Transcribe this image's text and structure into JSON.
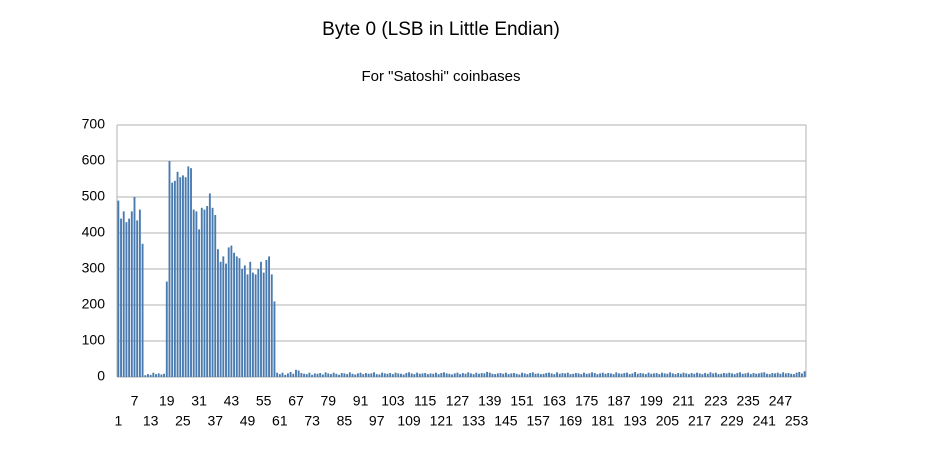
{
  "chart_data": {
    "type": "bar",
    "title": "Byte 0 (LSB in Little Endian)",
    "subtitle": "For \"Satoshi\" coinbases",
    "categories": [
      "1",
      null,
      null,
      null,
      null,
      null,
      "7",
      null,
      null,
      null,
      null,
      null,
      "13",
      null,
      null,
      null,
      null,
      null,
      "19",
      null,
      null,
      null,
      null,
      null,
      "25",
      null,
      null,
      null,
      null,
      null,
      "31",
      null,
      null,
      null,
      null,
      null,
      "37",
      null,
      null,
      null,
      null,
      null,
      "43",
      null,
      null,
      null,
      null,
      null,
      "49",
      null,
      null,
      null,
      null,
      null,
      "55",
      null,
      null,
      null,
      null,
      null,
      "61",
      null,
      null,
      null,
      null,
      null,
      "67",
      null,
      null,
      null,
      null,
      null,
      "73",
      null,
      null,
      null,
      null,
      null,
      "79",
      null,
      null,
      null,
      null,
      null,
      "85",
      null,
      null,
      null,
      null,
      null,
      "91",
      null,
      null,
      null,
      null,
      null,
      "97",
      null,
      null,
      null,
      null,
      null,
      "103",
      null,
      null,
      null,
      null,
      null,
      "109",
      null,
      null,
      null,
      null,
      null,
      "115",
      null,
      null,
      null,
      null,
      null,
      "121",
      null,
      null,
      null,
      null,
      null,
      "127",
      null,
      null,
      null,
      null,
      null,
      "133",
      null,
      null,
      null,
      null,
      null,
      "139",
      null,
      null,
      null,
      null,
      null,
      "145",
      null,
      null,
      null,
      null,
      null,
      "151",
      null,
      null,
      null,
      null,
      null,
      "157",
      null,
      null,
      null,
      null,
      null,
      "163",
      null,
      null,
      null,
      null,
      null,
      "169",
      null,
      null,
      null,
      null,
      null,
      "175",
      null,
      null,
      null,
      null,
      null,
      "181",
      null,
      null,
      null,
      null,
      null,
      "187",
      null,
      null,
      null,
      null,
      null,
      "193",
      null,
      null,
      null,
      null,
      null,
      "199",
      null,
      null,
      null,
      null,
      null,
      "205",
      null,
      null,
      null,
      null,
      null,
      "211",
      null,
      null,
      null,
      null,
      null,
      "217",
      null,
      null,
      null,
      null,
      null,
      "223",
      null,
      null,
      null,
      null,
      null,
      "229",
      null,
      null,
      null,
      null,
      null,
      "235",
      null,
      null,
      null,
      null,
      null,
      "241",
      null,
      null,
      null,
      null,
      null,
      "247",
      null,
      null,
      null,
      null,
      null,
      "253",
      null,
      null,
      null
    ],
    "values": [
      490,
      440,
      460,
      430,
      440,
      460,
      500,
      435,
      465,
      370,
      5,
      8,
      6,
      12,
      8,
      10,
      7,
      9,
      265,
      600,
      540,
      545,
      570,
      555,
      560,
      555,
      585,
      580,
      465,
      460,
      410,
      470,
      465,
      475,
      510,
      470,
      450,
      355,
      320,
      335,
      315,
      360,
      365,
      345,
      335,
      330,
      300,
      310,
      285,
      320,
      290,
      285,
      300,
      320,
      290,
      325,
      335,
      285,
      210,
      12,
      8,
      12,
      6,
      10,
      14,
      9,
      20,
      18,
      11,
      9,
      8,
      12,
      6,
      10,
      9,
      11,
      7,
      13,
      10,
      8,
      12,
      9,
      6,
      11,
      10,
      8,
      13,
      9,
      7,
      10,
      12,
      8,
      11,
      9,
      10,
      13,
      8,
      7,
      12,
      10,
      9,
      11,
      8,
      12,
      10,
      9,
      7,
      11,
      13,
      10,
      8,
      12,
      9,
      10,
      11,
      8,
      10,
      9,
      12,
      8,
      11,
      13,
      10,
      9,
      7,
      10,
      12,
      8,
      11,
      9,
      13,
      10,
      8,
      12,
      9,
      11,
      10,
      14,
      12,
      9,
      8,
      10,
      11,
      9,
      12,
      8,
      10,
      11,
      9,
      7,
      12,
      10,
      8,
      11,
      13,
      9,
      10,
      8,
      9,
      11,
      12,
      10,
      8,
      13,
      9,
      11,
      10,
      12,
      8,
      9,
      11,
      10,
      8,
      12,
      9,
      10,
      13,
      11,
      8,
      10,
      12,
      9,
      11,
      10,
      8,
      13,
      10,
      9,
      11,
      12,
      8,
      10,
      14,
      9,
      11,
      10,
      8,
      12,
      9,
      10,
      11,
      8,
      12,
      10,
      9,
      13,
      10,
      8,
      11,
      9,
      12,
      10,
      8,
      11,
      9,
      12,
      10,
      8,
      11,
      9,
      13,
      10,
      12,
      8,
      9,
      11,
      10,
      12,
      10,
      8,
      11,
      13,
      9,
      10,
      12,
      8,
      11,
      9,
      10,
      12,
      13,
      9,
      8,
      11,
      10,
      12,
      9,
      13,
      10,
      11,
      9,
      8,
      12,
      14,
      10,
      16
    ],
    "color": "#4a7bb0",
    "ylim": [
      0,
      700
    ],
    "yticks": [
      0,
      100,
      200,
      300,
      400,
      500,
      600,
      700
    ],
    "grid": true
  }
}
